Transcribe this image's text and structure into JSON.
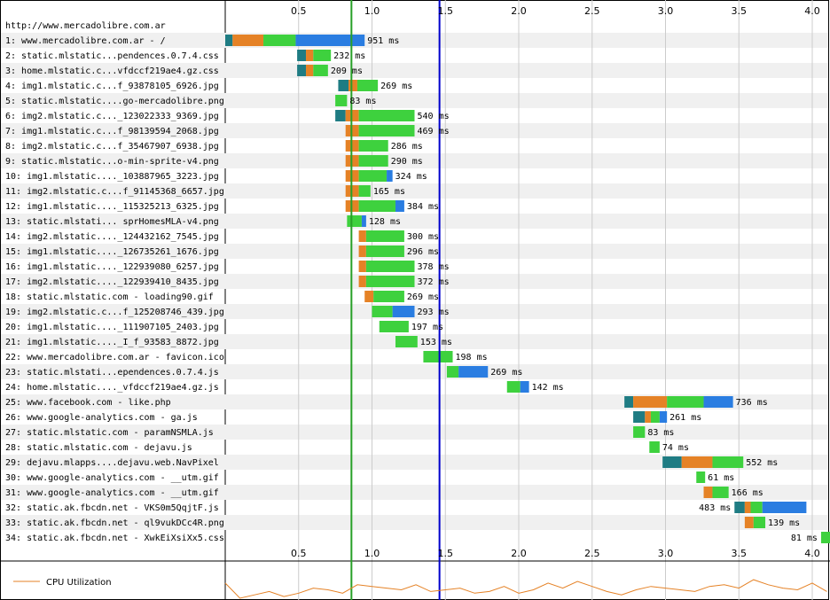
{
  "page_url": "http://www.mercadolibre.com.ar",
  "colors": {
    "dns": "#1f7c83",
    "connect": "#e58226",
    "ttfb": "#3ed13e",
    "download": "#2a7de1",
    "start_render_line": "#28a028",
    "doc_complete_line": "#0000cc",
    "cpu_line": "#e58226",
    "row_shade": "#f0f0f0",
    "grid": "#cccccc"
  },
  "chart_data": {
    "type": "waterfall",
    "x_unit": "seconds",
    "xlim": [
      0,
      4.15
    ],
    "x_ticks": [
      "0.5",
      "1.0",
      "1.5",
      "2.0",
      "2.5",
      "3.0",
      "3.5",
      "4.0"
    ],
    "markers": {
      "start_render": 0.86,
      "document_complete": 1.46
    },
    "requests": [
      {
        "label": "1: www.mercadolibre.com.ar - /",
        "duration": "951 ms",
        "segments": [
          [
            0.0,
            0.05,
            "dns"
          ],
          [
            0.05,
            0.26,
            "connect"
          ],
          [
            0.26,
            0.48,
            "ttfb"
          ],
          [
            0.48,
            0.95,
            "download"
          ]
        ]
      },
      {
        "label": "2: static.mlstatic...pendences.0.7.4.css",
        "duration": "232 ms",
        "segments": [
          [
            0.49,
            0.55,
            "dns"
          ],
          [
            0.55,
            0.6,
            "connect"
          ],
          [
            0.6,
            0.72,
            "ttfb"
          ]
        ]
      },
      {
        "label": "3: home.mlstatic.c...vfdccf219ae4.gz.css",
        "duration": "209 ms",
        "segments": [
          [
            0.49,
            0.55,
            "dns"
          ],
          [
            0.55,
            0.6,
            "connect"
          ],
          [
            0.6,
            0.7,
            "ttfb"
          ]
        ]
      },
      {
        "label": "4: img1.mlstatic.c...f_93878105_6926.jpg",
        "duration": "269 ms",
        "segments": [
          [
            0.77,
            0.84,
            "dns"
          ],
          [
            0.84,
            0.9,
            "connect"
          ],
          [
            0.9,
            1.04,
            "ttfb"
          ]
        ]
      },
      {
        "label": "5: static.mlstatic....go-mercadolibre.png",
        "duration": "83 ms",
        "segments": [
          [
            0.75,
            0.83,
            "ttfb"
          ]
        ]
      },
      {
        "label": "6: img2.mlstatic.c..._123022333_9369.jpg",
        "duration": "540 ms",
        "segments": [
          [
            0.75,
            0.82,
            "dns"
          ],
          [
            0.82,
            0.91,
            "connect"
          ],
          [
            0.91,
            1.29,
            "ttfb"
          ]
        ]
      },
      {
        "label": "7: img1.mlstatic.c...f_98139594_2068.jpg",
        "duration": "469 ms",
        "segments": [
          [
            0.82,
            0.91,
            "connect"
          ],
          [
            0.91,
            1.29,
            "ttfb"
          ]
        ]
      },
      {
        "label": "8: img2.mlstatic.c...f_35467907_6938.jpg",
        "duration": "286 ms",
        "segments": [
          [
            0.82,
            0.91,
            "connect"
          ],
          [
            0.91,
            1.11,
            "ttfb"
          ]
        ]
      },
      {
        "label": "9: static.mlstatic...o-min-sprite-v4.png",
        "duration": "290 ms",
        "segments": [
          [
            0.82,
            0.91,
            "connect"
          ],
          [
            0.91,
            1.11,
            "ttfb"
          ]
        ]
      },
      {
        "label": "10: img1.mlstatic...._103887965_3223.jpg",
        "duration": "324 ms",
        "segments": [
          [
            0.82,
            0.91,
            "connect"
          ],
          [
            0.91,
            1.1,
            "ttfb"
          ],
          [
            1.1,
            1.14,
            "download"
          ]
        ]
      },
      {
        "label": "11: img2.mlstatic.c...f_91145368_6657.jpg",
        "duration": "165 ms",
        "segments": [
          [
            0.82,
            0.91,
            "connect"
          ],
          [
            0.91,
            0.99,
            "ttfb"
          ]
        ]
      },
      {
        "label": "12: img1.mlstatic...._115325213_6325.jpg",
        "duration": "384 ms",
        "segments": [
          [
            0.82,
            0.91,
            "connect"
          ],
          [
            0.91,
            1.16,
            "ttfb"
          ],
          [
            1.16,
            1.22,
            "download"
          ]
        ]
      },
      {
        "label": "13: static.mlstati... sprHomesMLA-v4.png",
        "duration": "128 ms",
        "segments": [
          [
            0.83,
            0.93,
            "ttfb"
          ],
          [
            0.93,
            0.96,
            "download"
          ]
        ]
      },
      {
        "label": "14: img2.mlstatic...._124432162_7545.jpg",
        "duration": "300 ms",
        "segments": [
          [
            0.91,
            0.96,
            "connect"
          ],
          [
            0.96,
            1.22,
            "ttfb"
          ]
        ]
      },
      {
        "label": "15: img1.mlstatic...._126735261_1676.jpg",
        "duration": "296 ms",
        "segments": [
          [
            0.91,
            0.96,
            "connect"
          ],
          [
            0.96,
            1.22,
            "ttfb"
          ]
        ]
      },
      {
        "label": "16: img1.mlstatic...._122939080_6257.jpg",
        "duration": "378 ms",
        "segments": [
          [
            0.91,
            0.96,
            "connect"
          ],
          [
            0.96,
            1.29,
            "ttfb"
          ]
        ]
      },
      {
        "label": "17: img2.mlstatic...._122939410_8435.jpg",
        "duration": "372 ms",
        "segments": [
          [
            0.91,
            0.96,
            "connect"
          ],
          [
            0.96,
            1.29,
            "ttfb"
          ]
        ]
      },
      {
        "label": "18: static.mlstatic.com - loading90.gif",
        "duration": "269 ms",
        "segments": [
          [
            0.95,
            1.01,
            "connect"
          ],
          [
            1.01,
            1.22,
            "ttfb"
          ]
        ]
      },
      {
        "label": "19: img2.mlstatic.c...f_125208746_439.jpg",
        "duration": "293 ms",
        "segments": [
          [
            1.0,
            1.14,
            "ttfb"
          ],
          [
            1.14,
            1.29,
            "download"
          ]
        ]
      },
      {
        "label": "20: img1.mlstatic...._111907105_2403.jpg",
        "duration": "197 ms",
        "segments": [
          [
            1.05,
            1.25,
            "ttfb"
          ]
        ]
      },
      {
        "label": "21: img1.mlstatic...._I_f_93583_8872.jpg",
        "duration": "153 ms",
        "segments": [
          [
            1.16,
            1.31,
            "ttfb"
          ]
        ]
      },
      {
        "label": "22: www.mercadolibre.com.ar - favicon.ico",
        "duration": "198 ms",
        "segments": [
          [
            1.35,
            1.55,
            "ttfb"
          ]
        ]
      },
      {
        "label": "23: static.mlstati...ependences.0.7.4.js",
        "duration": "269 ms",
        "segments": [
          [
            1.51,
            1.59,
            "ttfb"
          ],
          [
            1.59,
            1.79,
            "download"
          ]
        ]
      },
      {
        "label": "24: home.mlstatic...._vfdccf219ae4.gz.js",
        "duration": "142 ms",
        "segments": [
          [
            1.92,
            2.01,
            "ttfb"
          ],
          [
            2.01,
            2.07,
            "download"
          ]
        ]
      },
      {
        "label": "25: www.facebook.com - like.php",
        "duration": "736 ms",
        "segments": [
          [
            2.72,
            2.78,
            "dns"
          ],
          [
            2.78,
            3.01,
            "connect"
          ],
          [
            3.01,
            3.26,
            "ttfb"
          ],
          [
            3.26,
            3.46,
            "download"
          ]
        ]
      },
      {
        "label": "26: www.google-analytics.com - ga.js",
        "duration": "261 ms",
        "segments": [
          [
            2.78,
            2.86,
            "dns"
          ],
          [
            2.86,
            2.9,
            "connect"
          ],
          [
            2.9,
            2.96,
            "ttfb"
          ],
          [
            2.96,
            3.01,
            "download"
          ]
        ]
      },
      {
        "label": "27: static.mlstatic.com - paramNSMLA.js",
        "duration": "83 ms",
        "segments": [
          [
            2.78,
            2.86,
            "ttfb"
          ]
        ]
      },
      {
        "label": "28: static.mlstatic.com - dejavu.js",
        "duration": "74 ms",
        "segments": [
          [
            2.89,
            2.96,
            "ttfb"
          ]
        ]
      },
      {
        "label": "29: dejavu.mlapps....dejavu.web.NavPixel",
        "duration": "552 ms",
        "segments": [
          [
            2.98,
            3.11,
            "dns"
          ],
          [
            3.11,
            3.32,
            "connect"
          ],
          [
            3.32,
            3.53,
            "ttfb"
          ]
        ]
      },
      {
        "label": "30: www.google-analytics.com - __utm.gif",
        "duration": "61 ms",
        "segments": [
          [
            3.21,
            3.27,
            "ttfb"
          ]
        ]
      },
      {
        "label": "31: www.google-analytics.com - __utm.gif",
        "duration": "166 ms",
        "segments": [
          [
            3.26,
            3.32,
            "connect"
          ],
          [
            3.32,
            3.43,
            "ttfb"
          ]
        ]
      },
      {
        "label": "32: static.ak.fbcdn.net - VKS0m5QqjtF.js",
        "duration": "483 ms",
        "segments": [
          [
            3.47,
            3.54,
            "dns"
          ],
          [
            3.54,
            3.58,
            "connect"
          ],
          [
            3.58,
            3.66,
            "ttfb"
          ],
          [
            3.66,
            3.96,
            "download"
          ]
        ]
      },
      {
        "label": "33: static.ak.fbcdn.net - ql9vukDCc4R.png",
        "duration": "139 ms",
        "segments": [
          [
            3.54,
            3.6,
            "connect"
          ],
          [
            3.6,
            3.68,
            "ttfb"
          ]
        ]
      },
      {
        "label": "34: static.ak.fbcdn.net - XwkEiXsiXx5.css",
        "duration": "81 ms",
        "segments": [
          [
            4.06,
            4.15,
            "ttfb"
          ]
        ]
      }
    ],
    "cpu": {
      "label": "CPU Utilization",
      "x": [
        0.0,
        0.1,
        0.2,
        0.3,
        0.4,
        0.5,
        0.6,
        0.7,
        0.8,
        0.9,
        1.0,
        1.1,
        1.2,
        1.3,
        1.4,
        1.5,
        1.6,
        1.7,
        1.8,
        1.9,
        2.0,
        2.1,
        2.2,
        2.3,
        2.4,
        2.5,
        2.6,
        2.7,
        2.8,
        2.9,
        3.0,
        3.1,
        3.2,
        3.3,
        3.4,
        3.5,
        3.6,
        3.7,
        3.8,
        3.9,
        4.0,
        4.1
      ],
      "values": [
        45,
        0,
        10,
        20,
        5,
        15,
        30,
        25,
        15,
        40,
        35,
        30,
        25,
        40,
        20,
        25,
        30,
        15,
        20,
        35,
        15,
        25,
        45,
        30,
        50,
        35,
        20,
        10,
        25,
        35,
        30,
        25,
        20,
        35,
        40,
        30,
        55,
        40,
        30,
        25,
        45,
        20
      ]
    }
  }
}
